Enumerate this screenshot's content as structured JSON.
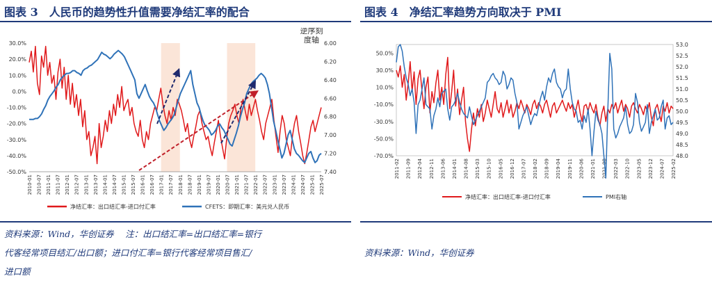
{
  "left": {
    "title": "图表 3　人民币的趋势性升值需要净结汇率的配合",
    "source_lines": [
      "资料来源：Wind，华创证券　 注：出口结汇率=出口结汇率=银行",
      "代客经常项目结汇/出口额；进口付汇率=银行代客经常项目售汇/",
      "进口额"
    ],
    "chart_data": {
      "type": "line",
      "title": "",
      "ylim_left": [
        -50,
        30
      ],
      "ylim_right": [
        7.4,
        6.0
      ],
      "right_axis_note": [
        "逆序刻",
        "度轴"
      ],
      "y_ticks_left": [
        "30.0%",
        "20.0%",
        "10.0%",
        "0.0%",
        "-10.0%",
        "-20.0%",
        "-30.0%",
        "-40.0%",
        "-50.0%"
      ],
      "y_ticks_right": [
        "6.00",
        "6.20",
        "6.40",
        "6.60",
        "6.80",
        "7.00",
        "7.20",
        "7.40"
      ],
      "x_ticks": [
        "2010-01",
        "2010-07",
        "2011-01",
        "2011-07",
        "2012-01",
        "2012-07",
        "2013-01",
        "2013-07",
        "2014-01",
        "2014-07",
        "2015-01",
        "2015-07",
        "2016-01",
        "2016-07",
        "2017-01",
        "2017-07",
        "2018-01",
        "2018-07",
        "2019-01",
        "2019-07",
        "2020-01",
        "2020-07",
        "2021-01",
        "2021-07",
        "2022-01",
        "2022-07",
        "2023-01",
        "2023-07",
        "2024-01",
        "2024-07",
        "2025-01",
        "2025-07"
      ],
      "shaded_periods": [
        [
          "2017-01",
          "2018-01"
        ],
        [
          "2020-07",
          "2022-01"
        ]
      ],
      "series": [
        {
          "name": "净结汇率：出口结汇率-进口付汇率",
          "axis": "left",
          "color": "#e0191b",
          "values": [
            18,
            25,
            12,
            28,
            5,
            -2,
            22,
            15,
            28,
            10,
            18,
            5,
            10,
            -5,
            12,
            20,
            2,
            15,
            -5,
            10,
            -8,
            5,
            -10,
            -2,
            -15,
            -5,
            -22,
            -12,
            -30,
            -25,
            -40,
            -35,
            -28,
            -45,
            -20,
            -35,
            -28,
            -18,
            -25,
            -12,
            -20,
            -8,
            -15,
            -2,
            -10,
            3,
            -12,
            -8,
            -5,
            -15,
            -10,
            -20,
            -25,
            -28,
            -18,
            -30,
            -35,
            -25,
            -30,
            -20,
            -15,
            -10,
            -12,
            -5,
            2,
            -8,
            -15,
            -20,
            -12,
            -18,
            -10,
            -15,
            -5,
            -8,
            -12,
            -18,
            -25,
            -20,
            -30,
            -35,
            -28,
            -22,
            -15,
            -12,
            -20,
            -25,
            -30,
            -28,
            -35,
            -40,
            -32,
            -25,
            -18,
            -28,
            -35,
            -42,
            -30,
            -20,
            -15,
            -12,
            -8,
            -15,
            -20,
            -10,
            -5,
            -12,
            -18,
            -8,
            -15,
            -10,
            -5,
            -12,
            -18,
            -25,
            -30,
            -20,
            -15,
            -10,
            -5,
            -18,
            -28,
            -38,
            -25,
            -15,
            -20,
            -30,
            -35,
            -40,
            -28,
            -20,
            -15,
            -25,
            -32,
            -40,
            -45,
            -38,
            -30,
            -22,
            -18,
            -25,
            -20,
            -15,
            -10
          ]
        },
        {
          "name": "CFETS：即期汇率：美元兑人民币",
          "axis": "right",
          "color": "#2f72b8",
          "values": [
            6.83,
            6.83,
            6.83,
            6.82,
            6.82,
            6.8,
            6.77,
            6.72,
            6.68,
            6.62,
            6.58,
            6.55,
            6.52,
            6.48,
            6.45,
            6.4,
            6.37,
            6.35,
            6.33,
            6.33,
            6.32,
            6.3,
            6.3,
            6.32,
            6.33,
            6.35,
            6.3,
            6.28,
            6.27,
            6.25,
            6.24,
            6.22,
            6.2,
            6.18,
            6.14,
            6.1,
            6.12,
            6.13,
            6.15,
            6.17,
            6.15,
            6.12,
            6.1,
            6.08,
            6.1,
            6.12,
            6.15,
            6.2,
            6.25,
            6.3,
            6.35,
            6.4,
            6.55,
            6.6,
            6.55,
            6.5,
            6.45,
            6.52,
            6.58,
            6.62,
            6.65,
            6.7,
            6.78,
            6.85,
            6.9,
            6.95,
            6.92,
            6.88,
            6.85,
            6.82,
            6.78,
            6.7,
            6.62,
            6.55,
            6.5,
            6.45,
            6.4,
            6.35,
            6.3,
            6.45,
            6.55,
            6.65,
            6.7,
            6.78,
            6.85,
            6.9,
            6.92,
            6.95,
            7.0,
            6.98,
            6.95,
            6.9,
            6.88,
            6.92,
            6.95,
            7.0,
            7.05,
            7.1,
            7.12,
            7.05,
            6.98,
            6.9,
            6.8,
            6.72,
            6.65,
            6.55,
            6.5,
            6.45,
            6.42,
            6.4,
            6.38,
            6.35,
            6.33,
            6.35,
            6.38,
            6.45,
            6.55,
            6.7,
            6.85,
            6.95,
            7.05,
            7.15,
            7.25,
            7.2,
            7.1,
            7.0,
            6.95,
            7.05,
            7.15,
            7.2,
            7.22,
            7.25,
            7.28,
            7.3,
            7.25,
            7.2,
            7.18,
            7.25,
            7.3,
            7.28,
            7.22,
            7.2
          ]
        }
      ]
    }
  },
  "right": {
    "title": "图表 4　净结汇率趋势方向取决于 PMI",
    "source_lines": [
      "资料来源：Wind，华创证券"
    ],
    "chart_data": {
      "type": "line",
      "title": "",
      "ylim_left": [
        -70,
        60
      ],
      "ylim_right": [
        48.0,
        53.0
      ],
      "y_ticks_left": [
        "50.0%",
        "30.0%",
        "10.0%",
        "-10.0%",
        "-30.0%",
        "-50.0%",
        "-70.0%"
      ],
      "y_ticks_right": [
        "53.0",
        "52.5",
        "52.0",
        "51.5",
        "51.0",
        "50.5",
        "50.0",
        "49.5",
        "49.0",
        "48.5",
        "48.0"
      ],
      "x_ticks": [
        "2011-02",
        "2011-09",
        "2012-04",
        "2012-11",
        "2013-06",
        "2014-01",
        "2014-08",
        "2015-03",
        "2015-10",
        "2016-05",
        "2016-12",
        "2017-07",
        "2018-02",
        "2018-09",
        "2019-04",
        "2019-11",
        "2020-06",
        "2021-01",
        "2021-08",
        "2022-03",
        "2022-10",
        "2023-05",
        "2023-12",
        "2024-07",
        "2025-02"
      ],
      "series": [
        {
          "name": "净结汇率：出口结汇率-进口付汇率",
          "axis": "left",
          "color": "#e0191b",
          "values": [
            30,
            22,
            35,
            10,
            25,
            -5,
            15,
            40,
            5,
            28,
            -10,
            20,
            30,
            5,
            -15,
            10,
            22,
            -20,
            5,
            -8,
            15,
            30,
            -5,
            10,
            -10,
            25,
            45,
            -15,
            5,
            30,
            -12,
            8,
            -22,
            -5,
            10,
            -30,
            -50,
            -65,
            -40,
            -20,
            -35,
            -15,
            -25,
            -10,
            -30,
            -20,
            -5,
            -15,
            -25,
            -10,
            5,
            -15,
            -20,
            -8,
            -25,
            -15,
            -5,
            -20,
            -10,
            -25,
            -18,
            -8,
            -15,
            -5,
            -12,
            -20,
            -10,
            -15,
            -22,
            -10,
            -5,
            -15,
            -8,
            -12,
            -20,
            -10,
            -5,
            -15,
            -25,
            -12,
            -8,
            -20,
            -15,
            -10,
            -5,
            -12,
            -18,
            -8,
            -15,
            -10,
            -25,
            -15,
            -5,
            -20,
            -30,
            -12,
            -10,
            -18,
            -8,
            -15,
            -20,
            -10,
            -25,
            -35,
            -20,
            -12,
            -30,
            -15,
            -20,
            -10,
            -15,
            -8,
            -20,
            -12,
            -5,
            -18,
            -10,
            -15,
            -25,
            -12,
            -8,
            -15,
            -20,
            -10,
            -15,
            -22,
            -12,
            -18,
            -8,
            -25,
            -35,
            -15,
            -10,
            -20,
            -30,
            -12,
            -18,
            -8,
            -20,
            -12,
            -15
          ]
        },
        {
          "name": "PMI右轴",
          "axis": "right",
          "color": "#2f72b8",
          "values": [
            52.2,
            52.9,
            53.0,
            52.7,
            52.0,
            51.5,
            51.2,
            50.7,
            51.0,
            50.4,
            49.0,
            50.3,
            50.5,
            51.0,
            51.5,
            50.3,
            50.2,
            50.1,
            49.2,
            49.8,
            50.1,
            50.6,
            50.2,
            50.8,
            50.9,
            51.0,
            50.1,
            49.6,
            50.2,
            50.3,
            50.5,
            50.8,
            50.4,
            50.1,
            49.9,
            49.8,
            49.7,
            50.2,
            49.8,
            49.4,
            49.6,
            49.8,
            50.0,
            50.2,
            50.4,
            50.6,
            51.3,
            51.4,
            51.6,
            51.7,
            51.5,
            51.4,
            51.2,
            51.3,
            51.8,
            51.6,
            51.0,
            51.2,
            51.5,
            51.4,
            50.8,
            50.4,
            49.2,
            49.5,
            49.8,
            50.0,
            50.2,
            49.8,
            49.4,
            49.7,
            49.9,
            49.8,
            50.2,
            50.6,
            50.9,
            50.5,
            51.1,
            51.5,
            51.3,
            51.7,
            51.9,
            51.3,
            51.1,
            51.0,
            50.6,
            50.9,
            51.0,
            51.9,
            51.0,
            50.4,
            50.1,
            50.0,
            49.5,
            49.6,
            49.2,
            49.8,
            49.5,
            50.1,
            49.2,
            48.0,
            49.1,
            50.0,
            49.6,
            49.4,
            49.0,
            48.0,
            47.0,
            50.1,
            52.6,
            51.9,
            49.2,
            48.8,
            49.0,
            49.3,
            49.5,
            49.7,
            50.2,
            49.4,
            49.0,
            49.1,
            49.4,
            50.8,
            50.4,
            49.5,
            49.1,
            49.3,
            49.5,
            50.3,
            49.0,
            49.5,
            49.8,
            50.1,
            49.6,
            49.7,
            50.2,
            50.5,
            49.2,
            49.7,
            49.8,
            49.4,
            49.5
          ]
        }
      ]
    }
  }
}
